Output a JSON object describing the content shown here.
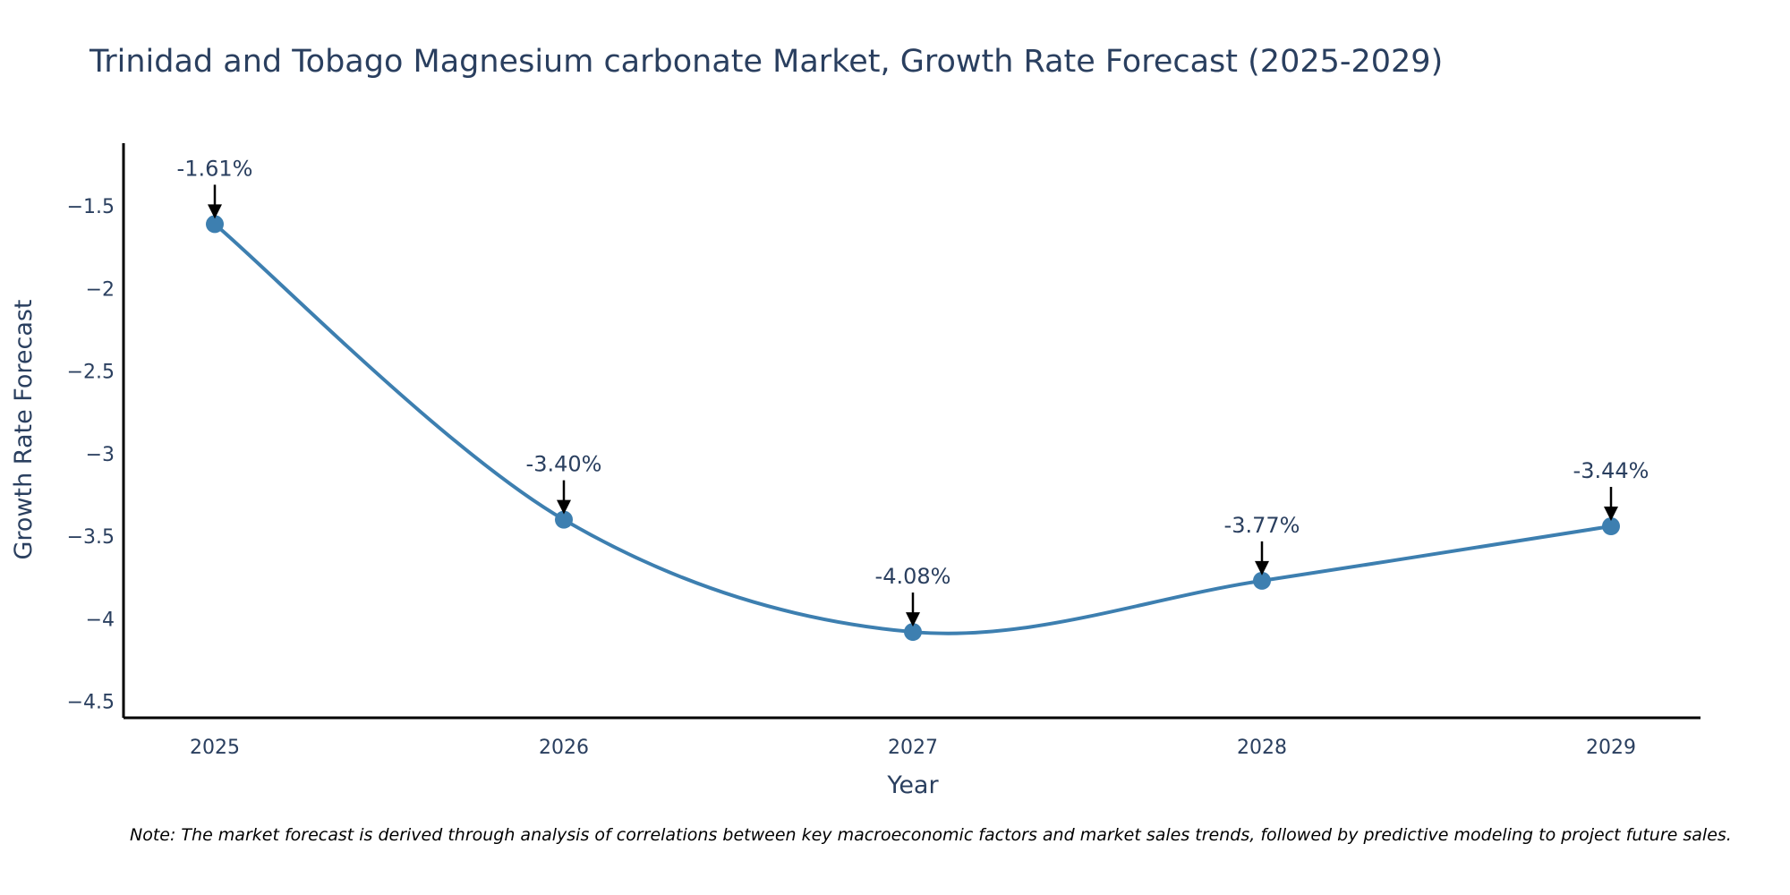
{
  "chart_data": {
    "type": "line",
    "title": "Trinidad and Tobago Magnesium carbonate Market, Growth Rate Forecast (2025-2029)",
    "xlabel": "Year",
    "ylabel": "Growth Rate Forecast",
    "categories": [
      "2025",
      "2026",
      "2027",
      "2028",
      "2029"
    ],
    "series": [
      {
        "name": "Growth Rate Forecast",
        "values": [
          -1.61,
          -3.4,
          -4.08,
          -3.77,
          -3.44
        ],
        "labels": [
          "-1.61%",
          "-3.40%",
          "-4.08%",
          "-3.77%",
          "-3.44%"
        ],
        "color": "#3d7fb0"
      }
    ],
    "ylim": [
      -4.6,
      -1.12
    ],
    "yticks": [
      -1.5,
      -2,
      -2.5,
      -3,
      -3.5,
      -4,
      -4.5
    ],
    "ytick_labels": [
      "−1.5",
      "−2",
      "−2.5",
      "−3",
      "−3.5",
      "−4",
      "−4.5"
    ],
    "grid": false,
    "line_shape": "spline"
  },
  "note": "Note: The market forecast is derived through analysis of correlations between key macroeconomic factors and market sales trends, followed by predictive modeling to project future sales."
}
